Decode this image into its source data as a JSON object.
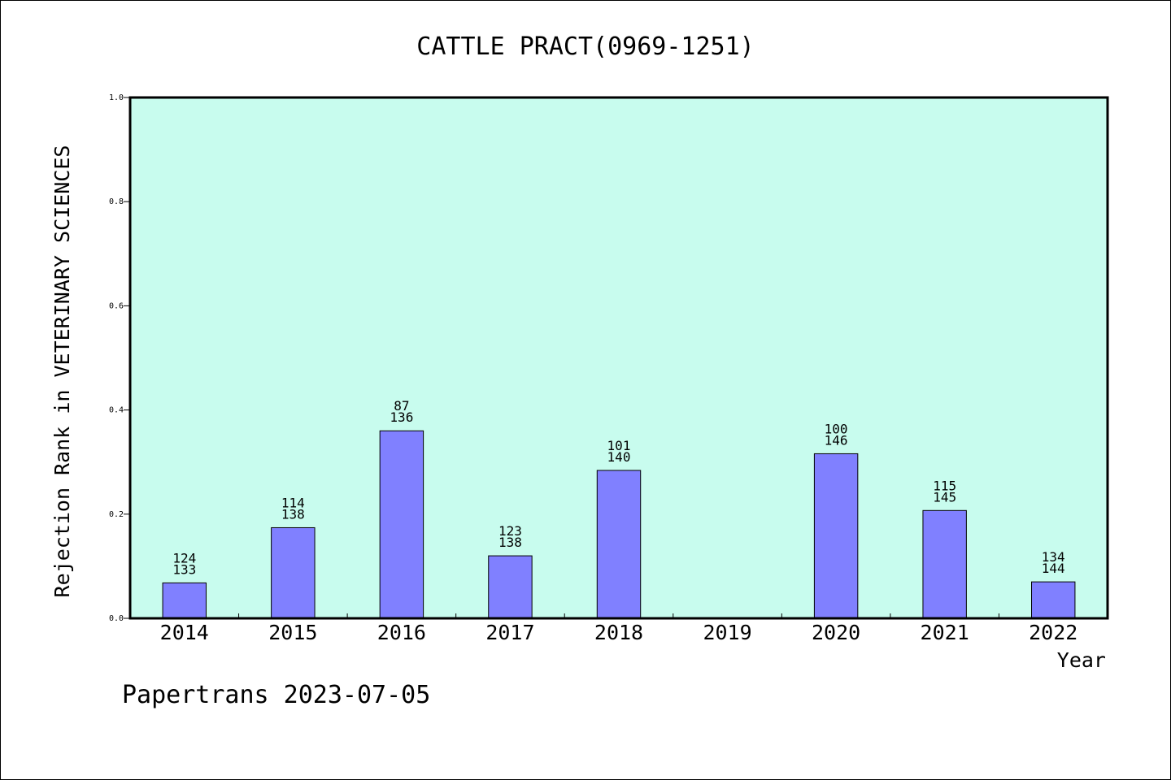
{
  "chart_data": {
    "type": "bar",
    "title": "CATTLE PRACT(0969-1251)",
    "xlabel": "Year",
    "ylabel": "Rejection Rank in VETERINARY SCIENCES",
    "ylim": [
      0,
      1.0
    ],
    "yticks": [
      "0.0",
      "0.2",
      "0.4",
      "0.6",
      "0.8",
      "1.0"
    ],
    "categories": [
      "2014",
      "2015",
      "2016",
      "2017",
      "2018",
      "2019",
      "2020",
      "2021",
      "2022"
    ],
    "values": [
      0.068,
      0.174,
      0.36,
      0.12,
      0.284,
      null,
      0.316,
      0.207,
      0.07
    ],
    "labels_top": [
      "124",
      "114",
      "87",
      "123",
      "101",
      "",
      "100",
      "115",
      "134"
    ],
    "labels_bottom": [
      "133",
      "138",
      "136",
      "138",
      "140",
      "",
      "146",
      "145",
      "144"
    ],
    "colors": {
      "plot_bg": "#c8fcee",
      "bar": "#8080ff",
      "bar_edge": "#000000"
    },
    "grid": false
  },
  "footer": {
    "text": "Papertrans 2023-07-05"
  }
}
